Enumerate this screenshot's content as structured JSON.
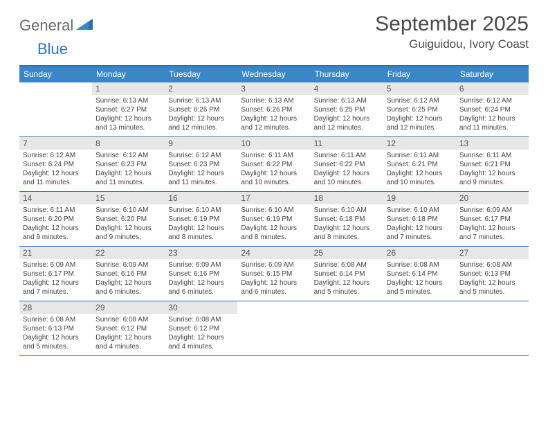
{
  "brand": {
    "part1": "General",
    "part2": "Blue"
  },
  "title": "September 2025",
  "location": "Guiguidou, Ivory Coast",
  "colors": {
    "header_bg": "#3a87c8",
    "border": "#2f6fa8",
    "daynum_bg": "#e7e7e7",
    "text": "#4a4a4a",
    "brand_gray": "#6a6a6a",
    "brand_blue": "#2f77bb"
  },
  "weekdays": [
    "Sunday",
    "Monday",
    "Tuesday",
    "Wednesday",
    "Thursday",
    "Friday",
    "Saturday"
  ],
  "weeks": [
    [
      {
        "n": "",
        "sr": "",
        "ss": "",
        "dl": ""
      },
      {
        "n": "1",
        "sr": "Sunrise: 6:13 AM",
        "ss": "Sunset: 6:27 PM",
        "dl": "Daylight: 12 hours and 13 minutes."
      },
      {
        "n": "2",
        "sr": "Sunrise: 6:13 AM",
        "ss": "Sunset: 6:26 PM",
        "dl": "Daylight: 12 hours and 12 minutes."
      },
      {
        "n": "3",
        "sr": "Sunrise: 6:13 AM",
        "ss": "Sunset: 6:26 PM",
        "dl": "Daylight: 12 hours and 12 minutes."
      },
      {
        "n": "4",
        "sr": "Sunrise: 6:13 AM",
        "ss": "Sunset: 6:25 PM",
        "dl": "Daylight: 12 hours and 12 minutes."
      },
      {
        "n": "5",
        "sr": "Sunrise: 6:12 AM",
        "ss": "Sunset: 6:25 PM",
        "dl": "Daylight: 12 hours and 12 minutes."
      },
      {
        "n": "6",
        "sr": "Sunrise: 6:12 AM",
        "ss": "Sunset: 6:24 PM",
        "dl": "Daylight: 12 hours and 11 minutes."
      }
    ],
    [
      {
        "n": "7",
        "sr": "Sunrise: 6:12 AM",
        "ss": "Sunset: 6:24 PM",
        "dl": "Daylight: 12 hours and 11 minutes."
      },
      {
        "n": "8",
        "sr": "Sunrise: 6:12 AM",
        "ss": "Sunset: 6:23 PM",
        "dl": "Daylight: 12 hours and 11 minutes."
      },
      {
        "n": "9",
        "sr": "Sunrise: 6:12 AM",
        "ss": "Sunset: 6:23 PM",
        "dl": "Daylight: 12 hours and 11 minutes."
      },
      {
        "n": "10",
        "sr": "Sunrise: 6:11 AM",
        "ss": "Sunset: 6:22 PM",
        "dl": "Daylight: 12 hours and 10 minutes."
      },
      {
        "n": "11",
        "sr": "Sunrise: 6:11 AM",
        "ss": "Sunset: 6:22 PM",
        "dl": "Daylight: 12 hours and 10 minutes."
      },
      {
        "n": "12",
        "sr": "Sunrise: 6:11 AM",
        "ss": "Sunset: 6:21 PM",
        "dl": "Daylight: 12 hours and 10 minutes."
      },
      {
        "n": "13",
        "sr": "Sunrise: 6:11 AM",
        "ss": "Sunset: 6:21 PM",
        "dl": "Daylight: 12 hours and 9 minutes."
      }
    ],
    [
      {
        "n": "14",
        "sr": "Sunrise: 6:11 AM",
        "ss": "Sunset: 6:20 PM",
        "dl": "Daylight: 12 hours and 9 minutes."
      },
      {
        "n": "15",
        "sr": "Sunrise: 6:10 AM",
        "ss": "Sunset: 6:20 PM",
        "dl": "Daylight: 12 hours and 9 minutes."
      },
      {
        "n": "16",
        "sr": "Sunrise: 6:10 AM",
        "ss": "Sunset: 6:19 PM",
        "dl": "Daylight: 12 hours and 8 minutes."
      },
      {
        "n": "17",
        "sr": "Sunrise: 6:10 AM",
        "ss": "Sunset: 6:19 PM",
        "dl": "Daylight: 12 hours and 8 minutes."
      },
      {
        "n": "18",
        "sr": "Sunrise: 6:10 AM",
        "ss": "Sunset: 6:18 PM",
        "dl": "Daylight: 12 hours and 8 minutes."
      },
      {
        "n": "19",
        "sr": "Sunrise: 6:10 AM",
        "ss": "Sunset: 6:18 PM",
        "dl": "Daylight: 12 hours and 7 minutes."
      },
      {
        "n": "20",
        "sr": "Sunrise: 6:09 AM",
        "ss": "Sunset: 6:17 PM",
        "dl": "Daylight: 12 hours and 7 minutes."
      }
    ],
    [
      {
        "n": "21",
        "sr": "Sunrise: 6:09 AM",
        "ss": "Sunset: 6:17 PM",
        "dl": "Daylight: 12 hours and 7 minutes."
      },
      {
        "n": "22",
        "sr": "Sunrise: 6:09 AM",
        "ss": "Sunset: 6:16 PM",
        "dl": "Daylight: 12 hours and 6 minutes."
      },
      {
        "n": "23",
        "sr": "Sunrise: 6:09 AM",
        "ss": "Sunset: 6:16 PM",
        "dl": "Daylight: 12 hours and 6 minutes."
      },
      {
        "n": "24",
        "sr": "Sunrise: 6:09 AM",
        "ss": "Sunset: 6:15 PM",
        "dl": "Daylight: 12 hours and 6 minutes."
      },
      {
        "n": "25",
        "sr": "Sunrise: 6:08 AM",
        "ss": "Sunset: 6:14 PM",
        "dl": "Daylight: 12 hours and 5 minutes."
      },
      {
        "n": "26",
        "sr": "Sunrise: 6:08 AM",
        "ss": "Sunset: 6:14 PM",
        "dl": "Daylight: 12 hours and 5 minutes."
      },
      {
        "n": "27",
        "sr": "Sunrise: 6:08 AM",
        "ss": "Sunset: 6:13 PM",
        "dl": "Daylight: 12 hours and 5 minutes."
      }
    ],
    [
      {
        "n": "28",
        "sr": "Sunrise: 6:08 AM",
        "ss": "Sunset: 6:13 PM",
        "dl": "Daylight: 12 hours and 5 minutes."
      },
      {
        "n": "29",
        "sr": "Sunrise: 6:08 AM",
        "ss": "Sunset: 6:12 PM",
        "dl": "Daylight: 12 hours and 4 minutes."
      },
      {
        "n": "30",
        "sr": "Sunrise: 6:08 AM",
        "ss": "Sunset: 6:12 PM",
        "dl": "Daylight: 12 hours and 4 minutes."
      },
      {
        "n": "",
        "sr": "",
        "ss": "",
        "dl": ""
      },
      {
        "n": "",
        "sr": "",
        "ss": "",
        "dl": ""
      },
      {
        "n": "",
        "sr": "",
        "ss": "",
        "dl": ""
      },
      {
        "n": "",
        "sr": "",
        "ss": "",
        "dl": ""
      }
    ]
  ]
}
